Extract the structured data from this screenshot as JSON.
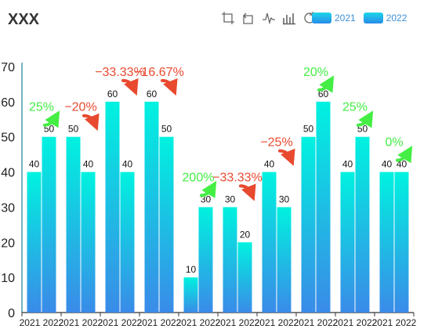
{
  "chart_data": {
    "type": "bar",
    "title": "XXX",
    "categories": [
      "2021 2022",
      "2021 2022",
      "2021 2022",
      "2021 2022",
      "2021 2022",
      "2021 2022",
      "2021 2022",
      "2021 2022",
      "2021 2022",
      "2021 2022"
    ],
    "series": [
      {
        "name": "2021",
        "values": [
          40,
          50,
          60,
          60,
          10,
          30,
          40,
          50,
          40,
          40
        ]
      },
      {
        "name": "2022",
        "values": [
          50,
          40,
          40,
          50,
          30,
          20,
          30,
          60,
          50,
          40
        ]
      }
    ],
    "change_labels": [
      "25%",
      "−20%",
      "−33.33%",
      "−16.67%",
      "200%",
      "−33.33%",
      "−25%",
      "20%",
      "25%",
      "0%"
    ],
    "ylim": [
      0,
      70
    ],
    "yticks": [
      0,
      10,
      20,
      30,
      40,
      50,
      60,
      70
    ],
    "grid": false,
    "legend_position": "top-right",
    "colors": {
      "up": "#44ee44",
      "down": "#e84a2f",
      "bar_top": "#00f0e0",
      "bar_bottom": "#2a8be8",
      "axis": "#1a7f99"
    }
  },
  "toolbox": {
    "icons": [
      "zoom-icon",
      "zoom-reset-icon",
      "line-chart-icon",
      "bar-chart-icon",
      "restore-icon",
      "save-icon"
    ]
  }
}
